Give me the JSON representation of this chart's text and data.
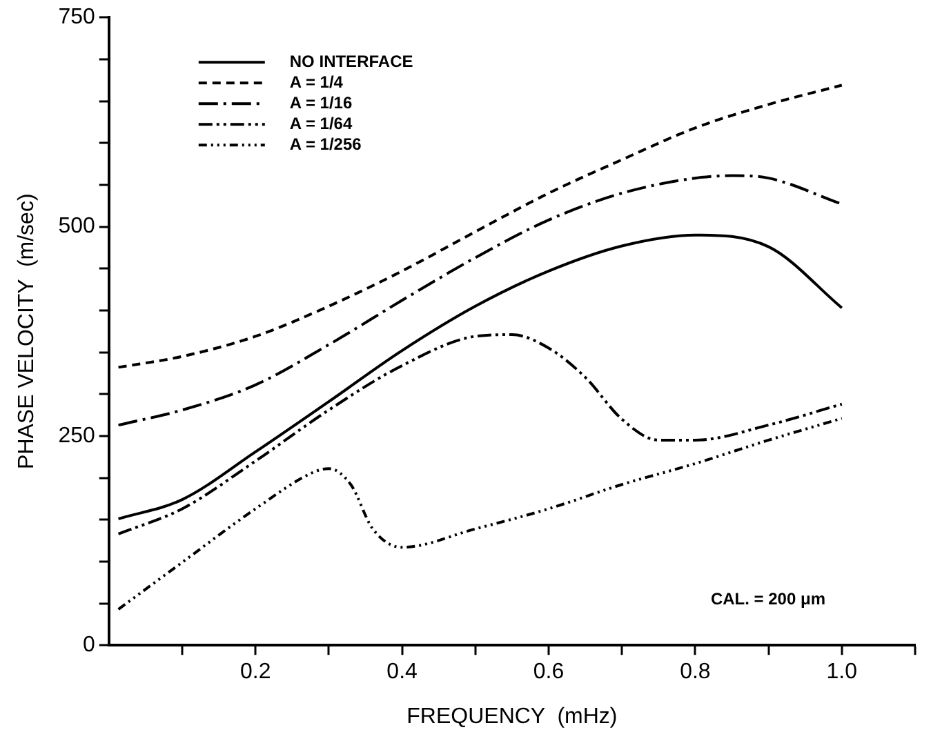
{
  "chart_data": {
    "type": "line",
    "xlabel": "FREQUENCY  (mHz)",
    "ylabel": "PHASE VELOCITY  (m/sec)",
    "xlim": [
      0,
      1.1
    ],
    "xticks": [
      {
        "value": 0.1,
        "label": null
      },
      0.2,
      {
        "value": 0.3,
        "label": null
      },
      0.4,
      {
        "value": 0.5,
        "label": null
      },
      0.6,
      {
        "value": 0.7,
        "label": null
      },
      0.8,
      {
        "value": 0.9,
        "label": null
      },
      {
        "value": 1.0,
        "label": "1.0"
      },
      {
        "value": 1.1,
        "label": null
      }
    ],
    "ylim": [
      0,
      750
    ],
    "yticks": [
      0,
      {
        "value": 50,
        "label": null
      },
      {
        "value": 100,
        "label": null
      },
      {
        "value": 150,
        "label": null
      },
      {
        "value": 200,
        "label": null
      },
      250,
      {
        "value": 300,
        "label": null
      },
      {
        "value": 350,
        "label": null
      },
      {
        "value": 400,
        "label": null
      },
      {
        "value": 450,
        "label": null
      },
      500,
      {
        "value": 550,
        "label": null
      },
      {
        "value": 600,
        "label": null
      },
      {
        "value": 650,
        "label": null
      },
      {
        "value": 700,
        "label": null
      },
      750
    ],
    "grid": false,
    "legend": "top left",
    "marker": "none",
    "x": [
      0.013,
      0.1,
      0.2,
      0.3,
      0.4,
      0.5,
      0.6,
      0.7,
      0.8,
      0.9,
      1.0
    ],
    "series": [
      {
        "name": "NO INTERFACE",
        "color": "#000000",
        "line_style": "solid",
        "values": [
          151,
          174,
          231,
          291,
          352,
          405,
          447,
          477,
          490,
          476,
          403
        ]
      },
      {
        "name": "A = 1/4",
        "color": "#000000",
        "line_style": "dashed",
        "values": [
          332,
          345,
          369,
          405,
          447,
          494,
          540,
          580,
          618,
          646,
          669
        ]
      },
      {
        "name": "A = 1/16",
        "color": "#000000",
        "line_style": "dashdot",
        "x": [
          0.013,
          0.1,
          0.2,
          0.3,
          0.4,
          0.5,
          0.6,
          0.7,
          0.8,
          0.85,
          0.9,
          1.0
        ],
        "values": [
          263,
          281,
          311,
          359,
          412,
          463,
          508,
          540,
          558,
          561,
          558,
          527
        ]
      },
      {
        "name": "A = 1/64",
        "color": "#000000",
        "line_style": "dashdotdot",
        "x": [
          0.013,
          0.1,
          0.2,
          0.3,
          0.4,
          0.5,
          0.55,
          0.6,
          0.65,
          0.7,
          0.75,
          0.8,
          0.9,
          1.0
        ],
        "values": [
          133,
          163,
          220,
          281,
          334,
          369,
          371,
          355,
          320,
          270,
          245,
          245,
          263,
          288
        ]
      },
      {
        "name": "A = 1/256",
        "color": "#000000",
        "line_style": "dashdotdotdot",
        "x": [
          0.013,
          0.1,
          0.2,
          0.28,
          0.3,
          0.33,
          0.36,
          0.4,
          0.5,
          0.6,
          0.7,
          0.8,
          0.9,
          1.0
        ],
        "values": [
          43,
          99,
          163,
          207,
          211,
          192,
          139,
          117,
          139,
          163,
          192,
          217,
          245,
          271
        ]
      }
    ],
    "annotations": [
      "CAL. = 200 μm"
    ]
  }
}
